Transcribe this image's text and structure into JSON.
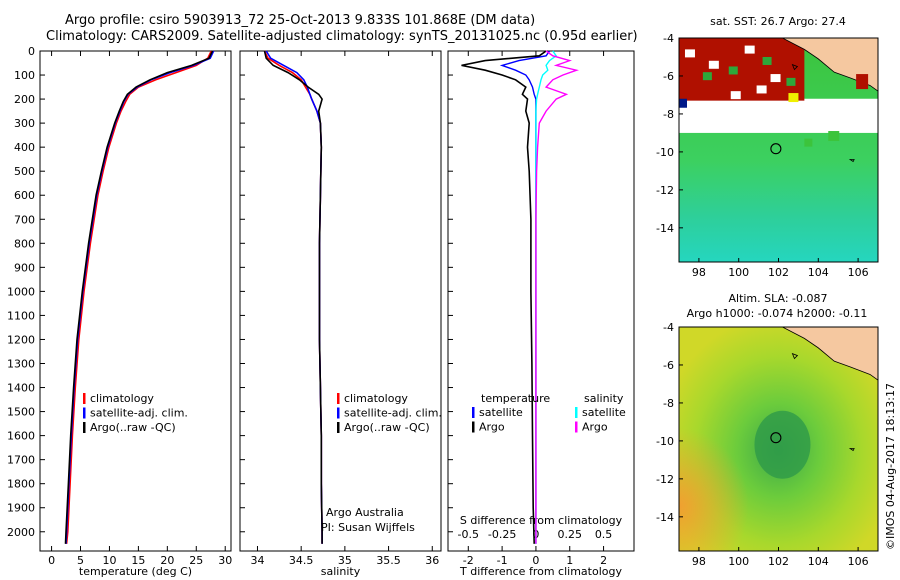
{
  "header": {
    "line1": "Argo profile: csiro 5903913_72 25-Oct-2013 9.833S 101.868E (DM data)",
    "line2": "Climatology: CARS2009. Satellite-adjusted climatology: synTS_20131025.nc (0.95d earlier)"
  },
  "colors": {
    "climatology": "#ff0000",
    "satellite": "#0000ff",
    "argo": "#000000",
    "sat_s": "#00ffff",
    "argo_s": "#ff00ff"
  },
  "chart_data": [
    {
      "type": "line",
      "id": "temperature",
      "xlabel": "temperature (deg C)",
      "ylabel": "",
      "xlim": [
        -2,
        31
      ],
      "ylim": [
        2080,
        0
      ],
      "xticks": [
        0,
        5,
        10,
        15,
        20,
        25,
        30
      ],
      "yticks": [
        0,
        100,
        200,
        300,
        400,
        500,
        600,
        700,
        800,
        900,
        1000,
        1100,
        1200,
        1300,
        1400,
        1500,
        1600,
        1700,
        1800,
        1900,
        2000
      ],
      "depth": [
        0,
        30,
        60,
        90,
        120,
        150,
        180,
        210,
        250,
        300,
        400,
        500,
        600,
        800,
        1000,
        1200,
        1400,
        1600,
        1800,
        2000,
        2050
      ],
      "series": [
        {
          "name": "climatology",
          "color": "#ff0000",
          "values": [
            27.6,
            27.0,
            25.0,
            21.5,
            18.0,
            15.0,
            13.5,
            12.8,
            12.0,
            11.2,
            9.9,
            8.9,
            8.0,
            6.7,
            5.6,
            4.7,
            4.1,
            3.6,
            3.2,
            2.8,
            2.6
          ]
        },
        {
          "name": "satellite-adj. clim.",
          "color": "#0000ff",
          "values": [
            28.0,
            27.4,
            24.5,
            20.5,
            17.2,
            14.8,
            13.2,
            12.5,
            11.8,
            11.0,
            9.7,
            8.7,
            7.8,
            6.5,
            5.4,
            4.5,
            3.9,
            3.4,
            3.0,
            2.6,
            2.5
          ]
        },
        {
          "name": "Argo(..raw -QC)",
          "color": "#000000",
          "values": [
            27.8,
            27.2,
            24.2,
            20.0,
            17.0,
            14.6,
            13.1,
            12.4,
            11.7,
            10.9,
            9.6,
            8.6,
            7.7,
            6.4,
            5.3,
            4.4,
            3.8,
            3.3,
            2.9,
            2.5,
            2.4
          ]
        }
      ],
      "legend": [
        "climatology",
        "satellite-adj. clim.",
        "Argo(..raw -QC)"
      ]
    },
    {
      "type": "line",
      "id": "salinity",
      "xlabel": "salinity",
      "ylabel": "",
      "xlim": [
        33.8,
        36.1
      ],
      "ylim": [
        2080,
        0
      ],
      "xticks": [
        34,
        34.5,
        35,
        35.5,
        36
      ],
      "depth": [
        0,
        30,
        60,
        90,
        120,
        150,
        180,
        200,
        250,
        300,
        400,
        600,
        800,
        1000,
        1200,
        1400,
        1600,
        1800,
        2000,
        2050
      ],
      "series": [
        {
          "name": "climatology",
          "color": "#ff0000",
          "values": [
            34.08,
            34.12,
            34.25,
            34.4,
            34.5,
            34.55,
            34.6,
            34.62,
            34.68,
            34.72,
            34.73,
            34.72,
            34.71,
            34.71,
            34.71,
            34.72,
            34.73,
            34.73,
            34.74,
            34.74
          ]
        },
        {
          "name": "satellite-adj. clim.",
          "color": "#0000ff",
          "values": [
            34.1,
            34.15,
            34.3,
            34.45,
            34.53,
            34.57,
            34.6,
            34.62,
            34.68,
            34.72,
            34.73,
            34.72,
            34.71,
            34.71,
            34.71,
            34.72,
            34.73,
            34.73,
            34.74,
            34.74
          ]
        },
        {
          "name": "Argo(..raw -QC)",
          "color": "#000000",
          "values": [
            34.08,
            34.1,
            34.18,
            34.35,
            34.48,
            34.58,
            34.7,
            34.74,
            34.7,
            34.72,
            34.73,
            34.72,
            34.71,
            34.71,
            34.71,
            34.72,
            34.73,
            34.73,
            34.74,
            34.74
          ]
        }
      ],
      "legend": [
        "climatology",
        "satellite-adj. clim.",
        "Argo(..raw -QC)"
      ],
      "credit1": "Argo Australia",
      "credit2": "PI: Susan Wijffels"
    },
    {
      "type": "line",
      "id": "differences",
      "xlabel": "T difference from climatology",
      "x2label": "S difference from climatology",
      "xlim": [
        -2.6,
        2.9
      ],
      "ylim": [
        2080,
        0
      ],
      "xticks": [
        -2,
        -1,
        0,
        1,
        2
      ],
      "x2ticks": [
        {
          "pos": -2.0,
          "label": "-0.5"
        },
        {
          "pos": -1.0,
          "label": "-0.25"
        },
        {
          "pos": 0,
          "label": "0"
        },
        {
          "pos": 1.0,
          "label": "0.25"
        },
        {
          "pos": 2.0,
          "label": "0.5"
        }
      ],
      "depth": [
        0,
        20,
        40,
        60,
        80,
        100,
        120,
        150,
        180,
        200,
        250,
        300,
        400,
        500,
        700,
        1000,
        1300,
        1600,
        1900,
        2050
      ],
      "series": [
        {
          "name": "satellite",
          "group": "temperature",
          "color": "#0000ff",
          "values": [
            0.4,
            0.3,
            -0.5,
            -1.0,
            -0.6,
            -0.3,
            -0.2,
            -0.1,
            -0.05,
            0,
            0,
            0,
            0,
            0,
            0,
            0,
            0,
            0,
            0,
            0
          ]
        },
        {
          "name": "Argo",
          "group": "temperature",
          "color": "#000000",
          "values": [
            0.3,
            0.1,
            -1.5,
            -2.2,
            -1.5,
            -1.0,
            -0.6,
            -0.3,
            -0.4,
            -0.25,
            -0.3,
            -0.2,
            -0.25,
            -0.2,
            -0.15,
            -0.15,
            -0.12,
            -0.1,
            -0.08,
            -0.05
          ]
        },
        {
          "name": "satellite",
          "group": "salinity",
          "color": "#00ffff",
          "values": [
            0.5,
            0.6,
            0.4,
            0.3,
            0.35,
            0.2,
            0.15,
            0.1,
            0.05,
            0.02,
            0,
            0,
            0,
            0,
            0,
            0,
            0,
            0,
            0,
            0
          ]
        },
        {
          "name": "Argo",
          "group": "salinity",
          "color": "#ff00ff",
          "values": [
            0.3,
            0.5,
            1.0,
            0.6,
            1.2,
            0.8,
            0.5,
            0.3,
            0.9,
            0.6,
            0.3,
            0.1,
            0.05,
            0.02,
            0,
            0,
            0,
            0,
            0,
            0
          ]
        }
      ],
      "legend_t_title": "temperature",
      "legend_s_title": "salinity",
      "legend_t": [
        "satellite",
        "Argo"
      ],
      "legend_s": [
        "satellite",
        "Argo"
      ]
    },
    {
      "type": "heatmap",
      "id": "sst_map",
      "title": "sat. SST: 26.7 Argo: 27.4",
      "xlim": [
        97,
        107
      ],
      "ylim": [
        -15.8,
        -4
      ],
      "xticks": [
        98,
        100,
        102,
        104,
        106
      ],
      "yticks": [
        -4,
        -6,
        -8,
        -10,
        -12,
        -14
      ],
      "argo_position": [
        101.868,
        -9.833
      ]
    },
    {
      "type": "heatmap",
      "id": "sla_map",
      "title1": "Altim. SLA: -0.087",
      "title2": "Argo h1000: -0.074 h2000: -0.11",
      "xlim": [
        97,
        107
      ],
      "ylim": [
        -15.8,
        -4
      ],
      "xticks": [
        98,
        100,
        102,
        104,
        106
      ],
      "yticks": [
        -4,
        -6,
        -8,
        -10,
        -12,
        -14
      ],
      "argo_position": [
        101.868,
        -9.833
      ]
    }
  ],
  "footer": {
    "stamp": "©IMOS 04-Aug-2017 18:13:17"
  }
}
